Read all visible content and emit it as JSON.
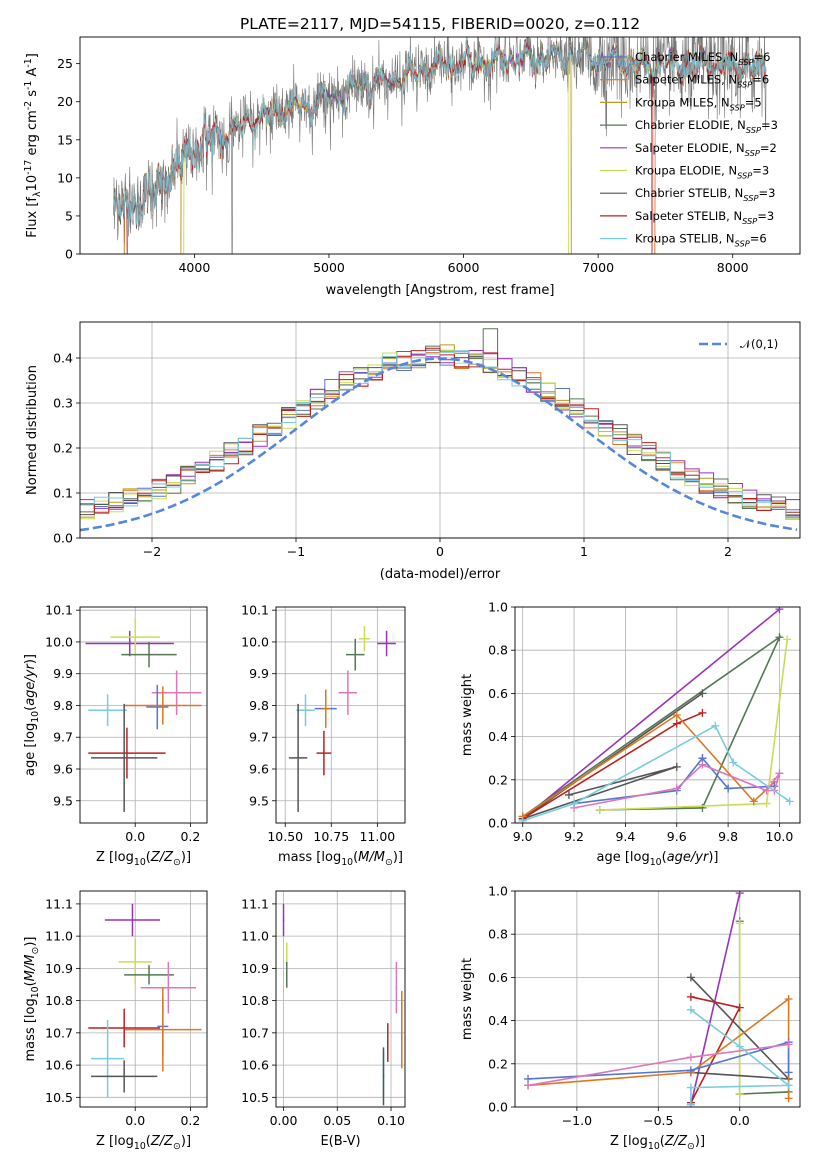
{
  "figure": {
    "title": "PLATE=2117, MJD=54115, FIBERID=0020, z=0.112"
  },
  "colors": {
    "Chabrier MILES": "#5577cc",
    "Salpeter MILES": "#dd7722",
    "Kroupa MILES": "#bb9922",
    "Chabrier ELODIE": "#557755",
    "Salpeter ELODIE": "#9933bb",
    "Kroupa ELODIE": "#ccdd55",
    "Chabrier STELIB": "#555555",
    "Salpeter STELIB": "#bb2222",
    "Kroupa STELIB": "#77ccdd",
    "extra_pink": "#dd77bb",
    "gaussian": "#5588dd"
  },
  "chart_data": [
    {
      "type": "line",
      "panel": "spectrum",
      "xlabel": "wavelength [Angstrom, rest frame]",
      "ylabel": "Flux [f$_\\lambda$10$^{-17}$ erg cm$^{-2}$ s$^{-1}$ A$^{-1}$]",
      "xlim": [
        3150,
        8500
      ],
      "ylim": [
        0,
        28.5
      ],
      "xticks": [
        4000,
        5000,
        6000,
        7000,
        8000
      ],
      "yticks": [
        0,
        5,
        10,
        15,
        20,
        25
      ],
      "grid": false,
      "legend": "top-right",
      "legend_labels": [
        "Chabrier MILES, N$_{SSP}$=6",
        "Salpeter MILES, N$_{SSP}$=6",
        "Kroupa MILES, N$_{SSP}$=5",
        "Chabrier ELODIE, N$_{SSP}$=3",
        "Salpeter ELODIE, N$_{SSP}$=2",
        "Kroupa ELODIE, N$_{SSP}$=3",
        "Chabrier STELIB, N$_{SSP}$=3",
        "Salpeter STELIB, N$_{SSP}$=3",
        "Kroupa STELIB, N$_{SSP}$=6"
      ],
      "continuum_x": [
        3400,
        3600,
        3800,
        4000,
        4200,
        4400,
        4600,
        4800,
        5000,
        5200,
        5400,
        5600,
        5800,
        6000,
        6200,
        6400,
        6600,
        6800,
        7000,
        7200,
        7400,
        7600,
        7800,
        8000,
        8250
      ],
      "continuum_y": [
        5.8,
        7.0,
        9.5,
        14.0,
        15.5,
        17.5,
        18.5,
        19.5,
        20.5,
        21.8,
        22.5,
        23.5,
        24.5,
        25.0,
        25.3,
        25.8,
        25.5,
        26.0,
        25.5,
        25.3,
        24.8,
        24.8,
        24.8,
        24.3,
        24.5
      ]
    },
    {
      "type": "line",
      "panel": "residual_histogram",
      "xlabel": "(data-model)/error",
      "ylabel": "Normed distribution",
      "xlim": [
        -2.5,
        2.5
      ],
      "ylim": [
        0,
        0.48
      ],
      "xticks": [
        -2,
        -1,
        0,
        1,
        2
      ],
      "yticks": [
        0.0,
        0.1,
        0.2,
        0.3,
        0.4
      ],
      "grid": true,
      "legend": "top-right",
      "legend_label": "$\\mathcal{N}(0,1)$"
    },
    {
      "type": "scatter",
      "panel": "age_vs_Z",
      "xlabel": "Z [log$_{10}$($Z/Z_\\odot$)]",
      "ylabel": "age  [log$_{10}$($age/yr$)]",
      "xlim": [
        -0.2,
        0.26
      ],
      "ylim": [
        9.43,
        10.11
      ],
      "xticks": [
        0.0,
        0.2
      ],
      "yticks": [
        9.5,
        9.6,
        9.7,
        9.8,
        9.9,
        10.0,
        10.1
      ],
      "grid": true,
      "points": [
        {
          "series": "Salpeter ELODIE",
          "x": -0.02,
          "y": 9.995,
          "xerr": 0.16,
          "yerr": 0.04
        },
        {
          "series": "Kroupa ELODIE",
          "x": 0.0,
          "y": 10.015,
          "xerr": 0.09,
          "yerr": 0.06
        },
        {
          "series": "Chabrier ELODIE",
          "x": 0.05,
          "y": 9.96,
          "xerr": 0.1,
          "yerr": 0.04
        },
        {
          "series": "extra_pink",
          "x": 0.15,
          "y": 9.84,
          "xerr": 0.09,
          "yerr": 0.07
        },
        {
          "series": "Chabrier MILES",
          "x": 0.08,
          "y": 9.795,
          "xerr": 0.04,
          "yerr": 0.07
        },
        {
          "series": "Salpeter MILES",
          "x": 0.1,
          "y": 9.8,
          "xerr": 0.14,
          "yerr": 0.06
        },
        {
          "series": "Kroupa STELIB",
          "x": -0.1,
          "y": 9.785,
          "xerr": 0.07,
          "yerr": 0.05
        },
        {
          "series": "Salpeter STELIB",
          "x": -0.03,
          "y": 9.65,
          "xerr": 0.14,
          "yerr": 0.08
        },
        {
          "series": "Chabrier STELIB",
          "x": -0.04,
          "y": 9.635,
          "xerr": 0.12,
          "yerr": 0.17
        }
      ]
    },
    {
      "type": "scatter",
      "panel": "age_vs_mass",
      "xlabel": "mass [log$_{10}$($M/M_\\odot$)]",
      "ylabel": "",
      "xlim": [
        10.45,
        11.15
      ],
      "ylim": [
        9.43,
        10.11
      ],
      "xticks": [
        10.5,
        10.75,
        11.0
      ],
      "xticklabels": [
        "10.50",
        "10.75",
        "11.00"
      ],
      "yticks": [
        9.5,
        9.6,
        9.7,
        9.8,
        9.9,
        10.0,
        10.1
      ],
      "grid": true,
      "points": [
        {
          "series": "Salpeter ELODIE",
          "x": 11.05,
          "y": 9.995,
          "yerr": 0.04,
          "xerr": 0.05
        },
        {
          "series": "Kroupa ELODIE",
          "x": 10.93,
          "y": 10.01,
          "yerr": 0.04,
          "xerr": 0.03
        },
        {
          "series": "Chabrier ELODIE",
          "x": 10.88,
          "y": 9.96,
          "yerr": 0.05,
          "xerr": 0.05
        },
        {
          "series": "extra_pink",
          "x": 10.84,
          "y": 9.84,
          "yerr": 0.07,
          "xerr": 0.05
        },
        {
          "series": "Chabrier MILES",
          "x": 10.72,
          "y": 9.79,
          "yerr": 0.06,
          "xerr": 0.06
        },
        {
          "series": "Salpeter MILES",
          "x": 10.72,
          "y": 9.79,
          "yerr": 0.06,
          "xerr": 0.02
        },
        {
          "series": "Kroupa STELIB",
          "x": 10.61,
          "y": 9.785,
          "yerr": 0.05,
          "xerr": 0.05
        },
        {
          "series": "Salpeter STELIB",
          "x": 10.71,
          "y": 9.65,
          "yerr": 0.07,
          "xerr": 0.04
        },
        {
          "series": "Chabrier STELIB",
          "x": 10.57,
          "y": 9.635,
          "yerr": 0.17,
          "xerr": 0.05
        }
      ]
    },
    {
      "type": "line",
      "panel": "mass_weight_vs_age",
      "xlabel": "age  [log$_{10}$($age/yr$)]",
      "ylabel": "mass weight",
      "xlim": [
        8.97,
        10.08
      ],
      "ylim": [
        0,
        1.0
      ],
      "xticks": [
        9.0,
        9.2,
        9.4,
        9.6,
        9.8,
        10.0
      ],
      "yticks": [
        0.0,
        0.2,
        0.4,
        0.6,
        0.8,
        1.0
      ],
      "grid": true,
      "series": [
        {
          "series": "Salpeter ELODIE",
          "x": [
            9.0,
            10.0
          ],
          "y": [
            0.02,
            0.99
          ]
        },
        {
          "series": "Chabrier ELODIE",
          "x": [
            9.0,
            10.0,
            9.7,
            9.3
          ],
          "y": [
            0.03,
            0.86,
            0.07,
            0.06
          ]
        },
        {
          "series": "Kroupa ELODIE",
          "x": [
            9.3,
            9.95,
            10.03
          ],
          "y": [
            0.06,
            0.09,
            0.85
          ]
        },
        {
          "series": "Chabrier STELIB",
          "x": [
            9.18,
            9.6,
            9.0,
            9.7
          ],
          "y": [
            0.13,
            0.26,
            0.02,
            0.6
          ]
        },
        {
          "series": "Salpeter STELIB",
          "x": [
            9.0,
            9.6,
            9.7
          ],
          "y": [
            0.02,
            0.46,
            0.51
          ]
        },
        {
          "series": "Salpeter MILES",
          "x": [
            9.0,
            9.6,
            9.9,
            9.98
          ],
          "y": [
            0.03,
            0.5,
            0.1,
            0.19
          ]
        },
        {
          "series": "Chabrier MILES",
          "x": [
            9.2,
            9.6,
            9.7,
            9.8,
            9.98,
            9.8,
            9.7
          ],
          "y": [
            0.09,
            0.15,
            0.3,
            0.16,
            0.17,
            0.16,
            0.3
          ]
        },
        {
          "series": "extra_pink",
          "x": [
            9.2,
            9.6,
            9.7,
            9.95,
            10.0,
            9.98
          ],
          "y": [
            0.07,
            0.16,
            0.27,
            0.15,
            0.23,
            0.15
          ]
        },
        {
          "series": "Kroupa STELIB",
          "x": [
            9.0,
            9.2,
            9.75,
            9.82,
            10.04
          ],
          "y": [
            0.01,
            0.09,
            0.45,
            0.28,
            0.1
          ]
        }
      ]
    },
    {
      "type": "scatter",
      "panel": "mass_vs_Z",
      "xlabel": "Z [log$_{10}$($Z/Z_\\odot$)]",
      "ylabel": "mass [log$_{10}$($M/M_\\odot$)]",
      "xlim": [
        -0.2,
        0.26
      ],
      "ylim": [
        10.47,
        11.14
      ],
      "xticks": [
        0.0,
        0.2
      ],
      "yticks": [
        10.5,
        10.6,
        10.7,
        10.8,
        10.9,
        11.0,
        11.1
      ],
      "grid": true,
      "points": [
        {
          "series": "Salpeter ELODIE",
          "x": -0.01,
          "y": 11.05,
          "xerr": 0.1,
          "yerr": 0.05
        },
        {
          "series": "Kroupa ELODIE",
          "x": 0.0,
          "y": 10.92,
          "xerr": 0.06,
          "yerr": 0.07
        },
        {
          "series": "Chabrier ELODIE",
          "x": 0.05,
          "y": 10.88,
          "xerr": 0.09,
          "yerr": 0.03
        },
        {
          "series": "extra_pink",
          "x": 0.12,
          "y": 10.84,
          "xerr": 0.1,
          "yerr": 0.08
        },
        {
          "series": "Chabrier MILES",
          "x": 0.1,
          "y": 10.72,
          "xerr": 0.02,
          "yerr": 0.09
        },
        {
          "series": "Salpeter MILES",
          "x": 0.1,
          "y": 10.71,
          "xerr": 0.14,
          "yerr": 0.13
        },
        {
          "series": "Salpeter STELIB",
          "x": -0.04,
          "y": 10.715,
          "xerr": 0.13,
          "yerr": 0.06
        },
        {
          "series": "Kroupa STELIB",
          "x": -0.1,
          "y": 10.62,
          "xerr": 0.06,
          "yerr": 0.12
        },
        {
          "series": "Chabrier STELIB",
          "x": -0.04,
          "y": 10.565,
          "xerr": 0.12,
          "yerr": 0.05
        }
      ]
    },
    {
      "type": "scatter",
      "panel": "mass_vs_EBV",
      "xlabel": "E(B-V)",
      "ylabel": "",
      "xlim": [
        -0.007,
        0.113
      ],
      "ylim": [
        10.47,
        11.14
      ],
      "xticks": [
        0.0,
        0.05,
        0.1
      ],
      "xticklabels": [
        "0.00",
        "0.05",
        "0.10"
      ],
      "yticks": [
        10.5,
        10.6,
        10.7,
        10.8,
        10.9,
        11.0,
        11.1
      ],
      "grid": true,
      "points": [
        {
          "series": "Salpeter ELODIE",
          "x": 0.0,
          "y": 11.05,
          "yerr": 0.05
        },
        {
          "series": "Kroupa ELODIE",
          "x": 0.003,
          "y": 10.92,
          "yerr": 0.06
        },
        {
          "series": "Chabrier ELODIE",
          "x": 0.003,
          "y": 10.88,
          "yerr": 0.04
        },
        {
          "series": "extra_pink",
          "x": 0.105,
          "y": 10.84,
          "yerr": 0.08
        },
        {
          "series": "Chabrier MILES",
          "x": 0.11,
          "y": 10.72,
          "yerr": 0.09
        },
        {
          "series": "Salpeter MILES",
          "x": 0.11,
          "y": 10.71,
          "yerr": 0.12
        },
        {
          "series": "Salpeter STELIB",
          "x": 0.097,
          "y": 10.67,
          "yerr": 0.06
        },
        {
          "series": "Kroupa STELIB",
          "x": 0.093,
          "y": 10.57,
          "yerr": 0.07
        },
        {
          "series": "Chabrier STELIB",
          "x": 0.093,
          "y": 10.565,
          "yerr": 0.09
        }
      ]
    },
    {
      "type": "line",
      "panel": "mass_weight_vs_Z",
      "xlabel": "Z [log$_{10}$($Z/Z_\\odot$)]",
      "ylabel": "mass weight",
      "xlim": [
        -1.38,
        0.37
      ],
      "ylim": [
        0,
        1.0
      ],
      "xticks": [
        -1.0,
        -0.5,
        0.0
      ],
      "yticks": [
        0.0,
        0.2,
        0.4,
        0.6,
        0.8,
        1.0
      ],
      "grid": true,
      "series": [
        {
          "series": "Salpeter ELODIE",
          "x": [
            -0.3,
            0.0
          ],
          "y": [
            0.01,
            0.99
          ]
        },
        {
          "series": "Chabrier ELODIE",
          "x": [
            0.0,
            0.0,
            0.3
          ],
          "y": [
            0.86,
            0.06,
            0.07
          ]
        },
        {
          "series": "Kroupa ELODIE",
          "x": [
            0.0,
            0.0
          ],
          "y": [
            0.85,
            0.06
          ]
        },
        {
          "series": "Chabrier STELIB",
          "x": [
            -0.3,
            0.3,
            -0.3
          ],
          "y": [
            0.6,
            0.13,
            0.16
          ]
        },
        {
          "series": "Salpeter STELIB",
          "x": [
            -0.3,
            0.0,
            -0.3
          ],
          "y": [
            0.51,
            0.46,
            0.02
          ]
        },
        {
          "series": "Salpeter MILES",
          "x": [
            -1.3,
            -0.3,
            0.3,
            0.3
          ],
          "y": [
            0.1,
            0.16,
            0.5,
            0.04
          ]
        },
        {
          "series": "Chabrier MILES",
          "x": [
            -1.3,
            -0.3,
            0.3,
            0.3
          ],
          "y": [
            0.13,
            0.17,
            0.3,
            0.16
          ]
        },
        {
          "series": "extra_pink",
          "x": [
            -1.3,
            -0.3,
            0.3
          ],
          "y": [
            0.1,
            0.23,
            0.29
          ]
        },
        {
          "series": "Kroupa STELIB",
          "x": [
            -0.3,
            0.0,
            0.3,
            -0.3,
            -0.3
          ],
          "y": [
            0.45,
            0.28,
            0.1,
            0.09,
            0.01
          ]
        }
      ]
    }
  ]
}
